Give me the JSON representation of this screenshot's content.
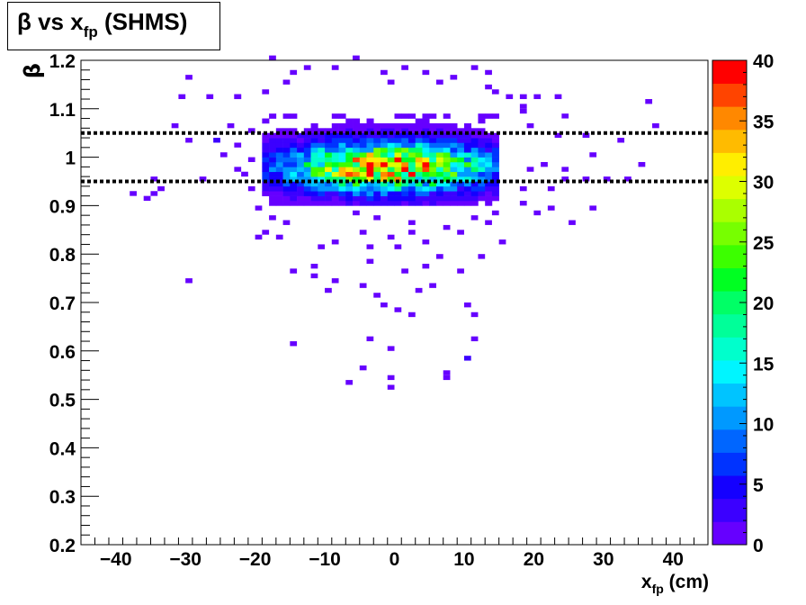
{
  "chart_data": {
    "type": "heatmap",
    "title": {
      "greek": "β",
      "mid": " vs x",
      "sub": "fp",
      "end": " (SHMS)"
    },
    "xlabel": {
      "main": "x",
      "sub": "fp",
      "unit": " (cm)"
    },
    "ylabel": "β",
    "xlim": [
      -45,
      45
    ],
    "ylim": [
      0.2,
      1.2
    ],
    "zlim": [
      0,
      40
    ],
    "bin_width_x": 1.0,
    "bin_height_y": 0.01,
    "xticks": [
      -40,
      -30,
      -20,
      -10,
      0,
      10,
      20,
      30,
      40
    ],
    "xtick_labels": [
      "−40",
      "−30",
      "−20",
      "−10",
      "0",
      "10",
      "20",
      "30",
      "40"
    ],
    "yticks": [
      0.2,
      0.3,
      0.4,
      0.5,
      0.6,
      0.7,
      0.8,
      0.9,
      1,
      1.1,
      1.2
    ],
    "ytick_labels": [
      "0.2",
      "0.3",
      "0.4",
      "0.5",
      "0.6",
      "0.7",
      "0.8",
      "0.9",
      "1",
      "1.1",
      "1.2"
    ],
    "zticks": [
      0,
      5,
      10,
      15,
      20,
      25,
      30,
      35,
      40
    ],
    "cut_lines": [
      1.05,
      0.95
    ],
    "palette": [
      "#6600ff",
      "#3b00ff",
      "#1400ff",
      "#0033ff",
      "#0066ff",
      "#0099ff",
      "#00c4ff",
      "#00f5ff",
      "#00ffcc",
      "#00ff99",
      "#00ff66",
      "#00ff22",
      "#3cff00",
      "#77ff00",
      "#aaff00",
      "#ddff00",
      "#ffee00",
      "#ffbb00",
      "#ff8800",
      "#ff4400",
      "#ff0000"
    ],
    "core": {
      "x_range": [
        -19,
        15
      ],
      "y_range": [
        0.9,
        1.09
      ],
      "cluster": {
        "x": -1,
        "y": 0.98,
        "peak": 34
      }
    },
    "scattered_points": [
      [
        -30,
        1.17,
        1
      ],
      [
        -27,
        1.12,
        1
      ],
      [
        -23,
        1.12,
        1
      ],
      [
        -32,
        1.06,
        1
      ],
      [
        -30,
        1.03,
        1
      ],
      [
        -26,
        1.03,
        2
      ],
      [
        -28,
        0.95,
        1
      ],
      [
        -35,
        0.95,
        1
      ],
      [
        -34,
        0.94,
        1
      ],
      [
        -38,
        0.92,
        1
      ],
      [
        -35,
        0.92,
        1
      ],
      [
        -36,
        0.91,
        1
      ],
      [
        -30,
        0.74,
        1
      ],
      [
        -15,
        0.61,
        1
      ],
      [
        -10,
        0.72,
        1
      ],
      [
        -9,
        0.74,
        1
      ],
      [
        -5,
        0.73,
        1
      ],
      [
        -3,
        0.71,
        1
      ],
      [
        -2,
        0.69,
        1
      ],
      [
        0,
        0.68,
        1
      ],
      [
        -4,
        0.62,
        1
      ],
      [
        -1,
        0.6,
        1
      ],
      [
        -5,
        0.56,
        1
      ],
      [
        -1,
        0.54,
        1
      ],
      [
        -7,
        0.53,
        1
      ],
      [
        -1,
        0.52,
        1
      ],
      [
        7,
        0.55,
        1
      ],
      [
        7,
        0.54,
        1
      ],
      [
        10,
        0.59,
        2
      ],
      [
        11,
        0.62,
        1
      ],
      [
        11,
        0.67,
        1
      ],
      [
        10,
        0.69,
        1
      ],
      [
        2,
        0.67,
        1
      ],
      [
        3,
        0.72,
        1
      ],
      [
        5,
        0.73,
        1
      ],
      [
        1,
        0.76,
        1
      ],
      [
        4,
        0.77,
        1
      ],
      [
        9,
        0.76,
        1
      ],
      [
        15,
        0.82,
        1
      ],
      [
        12,
        0.79,
        1
      ],
      [
        -4,
        0.78,
        1
      ],
      [
        -4,
        0.81,
        1
      ],
      [
        -17,
        0.83,
        1
      ],
      [
        -19,
        0.84,
        1
      ],
      [
        -16,
        0.86,
        1
      ],
      [
        -12,
        0.77,
        1
      ],
      [
        -12,
        0.75,
        1
      ],
      [
        -15,
        0.76,
        1
      ],
      [
        -11,
        0.81,
        1
      ],
      [
        -9,
        0.82,
        1
      ],
      [
        -5,
        0.84,
        1
      ],
      [
        4,
        0.82,
        1
      ],
      [
        7,
        0.85,
        1
      ],
      [
        11,
        0.87,
        1
      ],
      [
        14,
        0.88,
        1
      ],
      [
        18,
        0.9,
        1
      ],
      [
        20,
        0.88,
        1
      ],
      [
        22,
        0.89,
        1
      ],
      [
        25,
        0.86,
        1
      ],
      [
        28,
        0.89,
        1
      ],
      [
        22,
        0.93,
        1
      ],
      [
        18,
        0.94,
        1
      ],
      [
        19,
        0.97,
        1
      ],
      [
        21,
        0.98,
        1
      ],
      [
        24,
        0.97,
        1
      ],
      [
        28,
        1.0,
        1
      ],
      [
        24,
        0.95,
        1
      ],
      [
        27,
        0.95,
        1
      ],
      [
        30,
        0.95,
        1
      ],
      [
        33,
        0.95,
        1
      ],
      [
        35,
        0.98,
        1
      ],
      [
        32,
        1.03,
        1
      ],
      [
        27,
        1.04,
        1
      ],
      [
        23,
        1.04,
        1
      ],
      [
        19,
        1.06,
        1
      ],
      [
        18,
        1.09,
        1
      ],
      [
        24,
        1.08,
        1
      ],
      [
        18,
        1.1,
        1
      ],
      [
        37,
        1.06,
        1
      ],
      [
        36,
        1.11,
        1
      ],
      [
        18,
        1.12,
        1
      ],
      [
        20,
        1.13,
        1
      ],
      [
        23,
        1.13,
        1
      ],
      [
        16,
        1.13,
        1
      ],
      [
        14,
        1.14,
        1
      ],
      [
        13,
        1.15,
        1
      ],
      [
        13,
        1.18,
        1
      ],
      [
        11,
        1.19,
        1
      ],
      [
        8,
        1.17,
        1
      ],
      [
        6,
        1.16,
        1
      ],
      [
        4,
        1.18,
        1
      ],
      [
        1,
        1.19,
        1
      ],
      [
        -2,
        1.18,
        1
      ],
      [
        -1,
        1.16,
        1
      ],
      [
        -6,
        1.2,
        1
      ],
      [
        -9,
        1.19,
        1
      ],
      [
        -13,
        1.19,
        1
      ],
      [
        -15,
        1.18,
        1
      ],
      [
        -18,
        1.2,
        1
      ],
      [
        -16,
        1.16,
        1
      ],
      [
        -19,
        1.14,
        1
      ],
      [
        -23,
        1.12,
        1
      ],
      [
        -31,
        1.12,
        1
      ],
      [
        -21,
        1.05,
        1
      ],
      [
        -24,
        1.06,
        1
      ],
      [
        -25,
        1.0,
        1
      ],
      [
        -23,
        1.02,
        1
      ],
      [
        -21,
        0.99,
        1
      ],
      [
        -23,
        0.97,
        1
      ],
      [
        -22,
        0.96,
        1
      ],
      [
        -21,
        0.94,
        1
      ],
      [
        -19,
        0.92,
        1
      ],
      [
        -20,
        0.89,
        1
      ],
      [
        -18,
        0.87,
        1
      ],
      [
        -17,
        0.9,
        1
      ],
      [
        -20,
        0.83,
        1
      ],
      [
        0,
        0.81,
        1
      ],
      [
        2,
        0.84,
        1
      ],
      [
        6,
        0.79,
        1
      ],
      [
        13,
        0.86,
        1
      ],
      [
        -6,
        0.88,
        1
      ],
      [
        -3,
        0.87,
        1
      ],
      [
        2,
        0.86,
        1
      ],
      [
        -1,
        0.83,
        1
      ],
      [
        9,
        0.84,
        1
      ]
    ]
  }
}
